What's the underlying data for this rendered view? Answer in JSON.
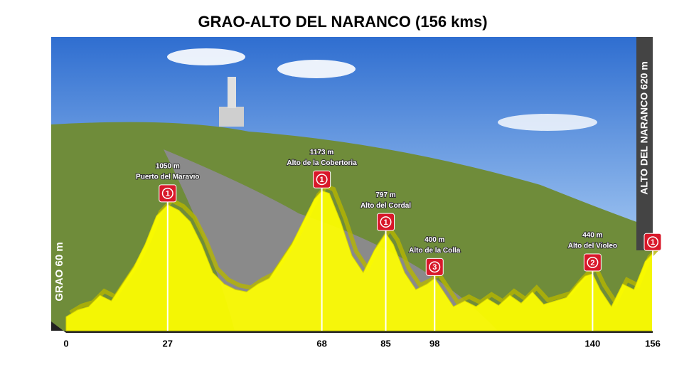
{
  "chart_data": {
    "type": "area",
    "title": "GRAO-ALTO DEL NARANCO (156 kms)",
    "start_label": "GRAO 60 m",
    "end_label": "ALTO DEL NARANCO 620 m",
    "x": [
      0,
      3,
      6,
      9,
      12,
      15,
      18,
      21,
      24,
      27,
      30,
      33,
      36,
      39,
      42,
      45,
      48,
      51,
      54,
      57,
      60,
      63,
      66,
      68,
      70,
      73,
      76,
      79,
      82,
      85,
      87,
      90,
      93,
      96,
      98,
      100,
      103,
      106,
      109,
      112,
      115,
      118,
      121,
      124,
      127,
      130,
      133,
      136,
      138,
      140,
      142,
      145,
      148,
      151,
      154,
      156
    ],
    "values": [
      60,
      120,
      150,
      250,
      200,
      350,
      500,
      700,
      950,
      1050,
      1000,
      900,
      700,
      450,
      350,
      300,
      280,
      350,
      400,
      550,
      700,
      900,
      1100,
      1173,
      1150,
      900,
      600,
      450,
      650,
      797,
      700,
      450,
      300,
      350,
      400,
      300,
      150,
      200,
      150,
      220,
      160,
      250,
      180,
      280,
      170,
      200,
      230,
      350,
      420,
      440,
      300,
      150,
      350,
      300,
      550,
      620
    ],
    "color": "#ffff00",
    "xlim": [
      0,
      156
    ],
    "ylim": [
      0,
      1250
    ],
    "xticks": [
      0,
      27,
      68,
      85,
      98,
      140,
      156
    ],
    "climbs": {
      "km": [
        27,
        68,
        85,
        98,
        140,
        156
      ],
      "elevations": [
        1050,
        1173,
        797,
        400,
        440,
        620
      ],
      "value_labels": [
        "1050 m",
        "1173 m",
        "797 m",
        "400 m",
        "440 m",
        null
      ],
      "names": [
        "Puerto del Maravio",
        "Alto de la Cobertoria",
        "Alto del Cordal",
        "Alto de la Colla",
        "Alto del Violeo",
        null
      ],
      "categories": [
        "1",
        "1",
        "1",
        "3",
        "2",
        "1"
      ]
    }
  }
}
